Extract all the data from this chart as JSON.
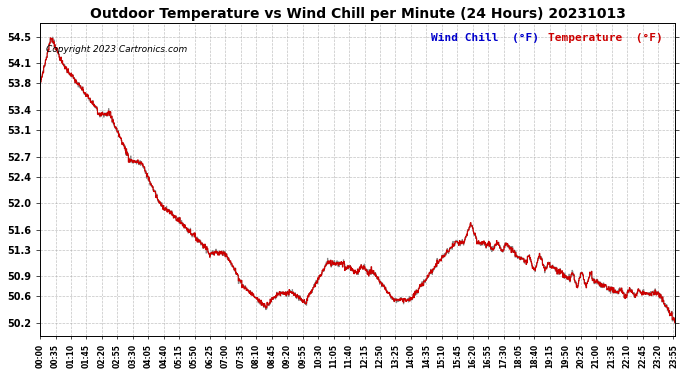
{
  "title": "Outdoor Temperature vs Wind Chill per Minute (24 Hours) 20231013",
  "copyright": "Copyright 2023 Cartronics.com",
  "legend_wind_chill": "Wind Chill  (°F)",
  "legend_temperature": "Temperature  (°F)",
  "y_ticks": [
    50.2,
    50.6,
    50.9,
    51.3,
    51.6,
    52.0,
    52.4,
    52.7,
    53.1,
    53.4,
    53.8,
    54.1,
    54.5
  ],
  "y_min": 50.0,
  "y_max": 54.7,
  "background_color": "#ffffff",
  "plot_bg_color": "#ffffff",
  "grid_color": "#aaaaaa",
  "line_color_temp": "#cc0000",
  "line_color_wind": "#888888",
  "title_color": "#000000",
  "copyright_color": "#000000",
  "legend_wind_color": "#0000cc",
  "legend_temp_color": "#cc0000",
  "total_minutes": 1440,
  "x_tick_interval": 35,
  "x_tick_labels": [
    "00:00",
    "00:35",
    "01:10",
    "01:45",
    "02:20",
    "02:55",
    "03:30",
    "04:05",
    "04:40",
    "05:15",
    "05:50",
    "06:25",
    "07:00",
    "07:35",
    "08:10",
    "08:45",
    "09:20",
    "09:55",
    "10:30",
    "11:05",
    "11:40",
    "12:15",
    "12:50",
    "13:25",
    "14:00",
    "14:35",
    "15:10",
    "15:45",
    "16:20",
    "16:55",
    "17:30",
    "18:05",
    "18:40",
    "19:15",
    "19:50",
    "20:25",
    "21:00",
    "21:35",
    "22:10",
    "22:45",
    "23:20",
    "23:55"
  ]
}
